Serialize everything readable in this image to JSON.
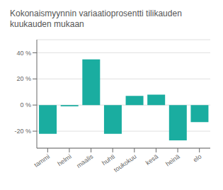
{
  "chart_data": {
    "type": "bar",
    "title": "Kokonaismyynnin variaatioprosentti tilikauden kuukauden mukaan",
    "categories": [
      "tammi",
      "helmi",
      "maalis",
      "huhti",
      "toukokuu",
      "kesä",
      "heinä",
      "elo"
    ],
    "values": [
      -22,
      -1,
      35,
      -22,
      7,
      8,
      -27,
      -13
    ],
    "color": "#1AADA0",
    "ylim": [
      -33,
      50
    ],
    "yticks": [
      {
        "value": -20,
        "label": "-20 %"
      },
      {
        "value": 0,
        "label": "0 %"
      },
      {
        "value": 20,
        "label": "20 %"
      },
      {
        "value": 40,
        "label": "40 %"
      }
    ],
    "grid": true
  }
}
